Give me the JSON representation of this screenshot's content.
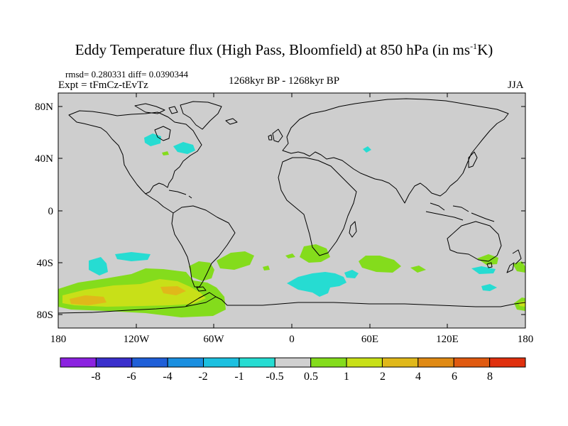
{
  "header": {
    "title_main": "Eddy Temperature flux (High Pass, Bloomfield) at 850 hPa (in ms",
    "title_sup": "-1",
    "title_end": "K)",
    "stats": "rmsd= 0.280331 diff= 0.0390344",
    "experiment": "Expt = tFmCz-tEvTz",
    "period": "1268kyr BP - 1268kyr BP",
    "season": "JJA"
  },
  "map": {
    "lat_labels": [
      "80N",
      "40N",
      "0",
      "40S",
      "80S"
    ],
    "lon_labels": [
      "180",
      "120W",
      "60W",
      "0",
      "60E",
      "120E",
      "180"
    ]
  },
  "colorbar": {
    "colors": [
      "#8b22e0",
      "#3a2fcc",
      "#1f5fd8",
      "#1a8fe0",
      "#1cc0e0",
      "#26dcd2",
      "#d0d0d0",
      "#84dc1c",
      "#c8e018",
      "#e0b81a",
      "#e08a14",
      "#e05a10",
      "#e0300e"
    ],
    "labels": [
      "-8",
      "-6",
      "-4",
      "-2",
      "-1",
      "-0.5",
      "0.5",
      "1",
      "2",
      "4",
      "6",
      "8"
    ]
  },
  "palette": {
    "ocean": "#cecece",
    "cyan": "#26dcd2",
    "green": "#84dc1c",
    "yellow": "#c8e018",
    "orange": "#e0b81a",
    "coast": "#000000"
  }
}
